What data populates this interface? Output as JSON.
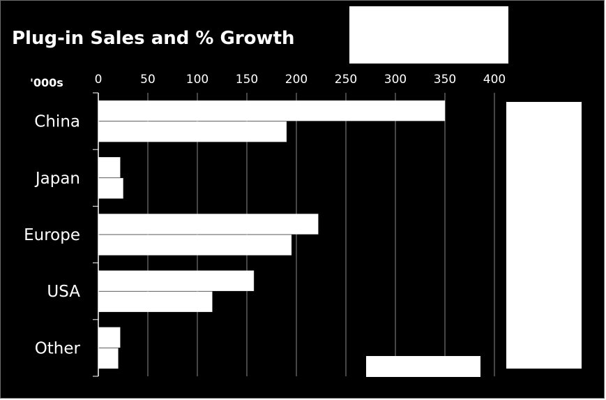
{
  "chart_data": {
    "type": "bar",
    "orientation": "horizontal",
    "title": "Plug-in Sales and % Growth",
    "unit_label": "'000s",
    "categories": [
      "China",
      "Japan",
      "Europe",
      "USA",
      "Other"
    ],
    "series": [
      {
        "values": [
          350,
          22,
          222,
          157,
          22
        ]
      },
      {
        "values": [
          190,
          25,
          195,
          115,
          20
        ]
      }
    ],
    "xlim": [
      0,
      400
    ],
    "x_ticks": [
      0,
      50,
      100,
      150,
      200,
      250,
      300,
      350,
      400
    ],
    "x_axis_position": "top",
    "grid": true,
    "colors": {
      "background": "#000000",
      "bars": "#ffffff",
      "grid": "#8c8c8c",
      "text": "#ffffff"
    }
  }
}
